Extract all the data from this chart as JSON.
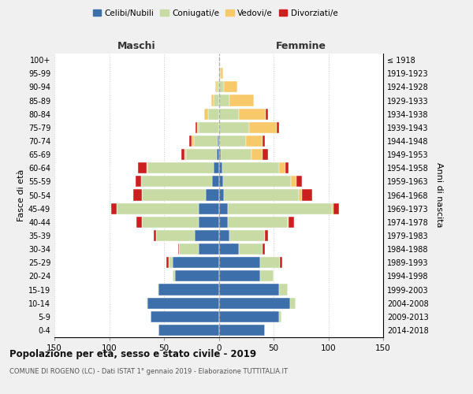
{
  "age_groups": [
    "0-4",
    "5-9",
    "10-14",
    "15-19",
    "20-24",
    "25-29",
    "30-34",
    "35-39",
    "40-44",
    "45-49",
    "50-54",
    "55-59",
    "60-64",
    "65-69",
    "70-74",
    "75-79",
    "80-84",
    "85-89",
    "90-94",
    "95-99",
    "100+"
  ],
  "birth_years": [
    "2014-2018",
    "2009-2013",
    "2004-2008",
    "1999-2003",
    "1994-1998",
    "1989-1993",
    "1984-1988",
    "1979-1983",
    "1974-1978",
    "1969-1973",
    "1964-1968",
    "1959-1963",
    "1954-1958",
    "1949-1953",
    "1944-1948",
    "1939-1943",
    "1934-1938",
    "1929-1933",
    "1924-1928",
    "1919-1923",
    "≤ 1918"
  ],
  "colors": {
    "celibe": "#3d6faa",
    "coniugato": "#c8dba4",
    "vedovo": "#f7c96b",
    "divorziato": "#cc1f1f"
  },
  "males_celibe": [
    55,
    62,
    65,
    55,
    40,
    42,
    18,
    22,
    18,
    18,
    12,
    6,
    5,
    2,
    1,
    0,
    0,
    0,
    0,
    0,
    0
  ],
  "males_coniugato": [
    0,
    0,
    1,
    1,
    2,
    4,
    18,
    35,
    52,
    75,
    58,
    65,
    60,
    28,
    22,
    18,
    10,
    5,
    2,
    0,
    0
  ],
  "males_vedovo": [
    0,
    0,
    0,
    0,
    0,
    0,
    0,
    0,
    0,
    0,
    0,
    0,
    1,
    1,
    2,
    2,
    3,
    2,
    1,
    0,
    0
  ],
  "males_divorziato": [
    0,
    0,
    0,
    0,
    0,
    2,
    1,
    2,
    5,
    5,
    8,
    5,
    8,
    3,
    2,
    1,
    0,
    0,
    0,
    0,
    0
  ],
  "females_nubile": [
    42,
    55,
    65,
    55,
    38,
    38,
    18,
    10,
    8,
    8,
    5,
    4,
    3,
    2,
    0,
    0,
    0,
    0,
    0,
    0,
    0
  ],
  "females_coniugata": [
    0,
    2,
    5,
    8,
    12,
    18,
    22,
    32,
    55,
    95,
    68,
    62,
    52,
    28,
    25,
    28,
    18,
    10,
    5,
    2,
    0
  ],
  "females_vedova": [
    0,
    0,
    0,
    0,
    0,
    0,
    0,
    0,
    1,
    2,
    3,
    5,
    6,
    10,
    15,
    25,
    25,
    22,
    12,
    2,
    0
  ],
  "females_divorziata": [
    0,
    0,
    0,
    0,
    0,
    2,
    2,
    3,
    5,
    5,
    9,
    5,
    3,
    5,
    2,
    2,
    2,
    0,
    0,
    0,
    0
  ],
  "xlim": 150,
  "title": "Popolazione per età, sesso e stato civile - 2019",
  "subtitle": "COMUNE DI ROGENO (LC) - Dati ISTAT 1° gennaio 2019 - Elaborazione TUTTITALIA.IT",
  "ylabel_left": "Fasce di età",
  "ylabel_right": "Anni di nascita",
  "label_maschi": "Maschi",
  "label_femmine": "Femmine",
  "legend_labels": [
    "Celibi/Nubili",
    "Coniugati/e",
    "Vedovi/e",
    "Divorziati/e"
  ],
  "bg_color": "#f0f0f0",
  "plot_bg": "#ffffff",
  "grid_color": "#cccccc"
}
